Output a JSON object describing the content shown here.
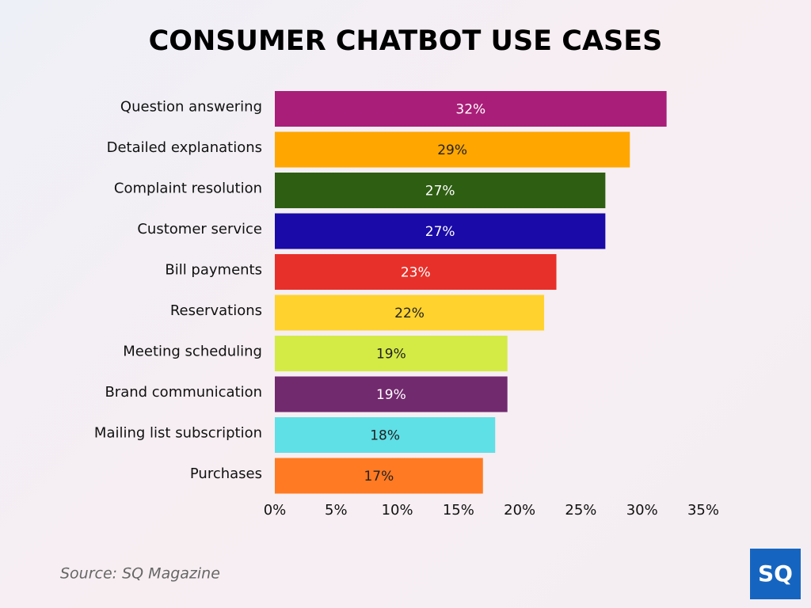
{
  "chart_data": {
    "type": "hbar",
    "title": "CONSUMER CHATBOT USE CASES",
    "categories": [
      "Question answering",
      "Detailed explanations",
      "Complaint resolution",
      "Customer service",
      "Bill payments",
      "Reservations",
      "Meeting scheduling",
      "Brand communication",
      "Mailing list subscription",
      "Purchases"
    ],
    "values": [
      32,
      29,
      27,
      27,
      23,
      22,
      19,
      19,
      18,
      17
    ],
    "value_labels": [
      "32%",
      "29%",
      "27%",
      "27%",
      "23%",
      "22%",
      "19%",
      "19%",
      "18%",
      "17%"
    ],
    "colors": [
      "#a91e78",
      "#ffa600",
      "#2e5e12",
      "#1a0aa8",
      "#e8302a",
      "#ffd22e",
      "#d4ea45",
      "#722a6e",
      "#5fdfe6",
      "#ff7a22"
    ],
    "xlim": [
      0,
      35
    ],
    "xticks": [
      {
        "value": 0,
        "label": "0%"
      },
      {
        "value": 5,
        "label": "5%"
      },
      {
        "value": 10,
        "label": "10%"
      },
      {
        "value": 15,
        "label": "15%"
      },
      {
        "value": 20,
        "label": "20%"
      },
      {
        "value": 25,
        "label": "25%"
      },
      {
        "value": 30,
        "label": "30%"
      },
      {
        "value": 35,
        "label": "35%"
      }
    ],
    "source": "Source: SQ Magazine",
    "logo": "SQ"
  }
}
